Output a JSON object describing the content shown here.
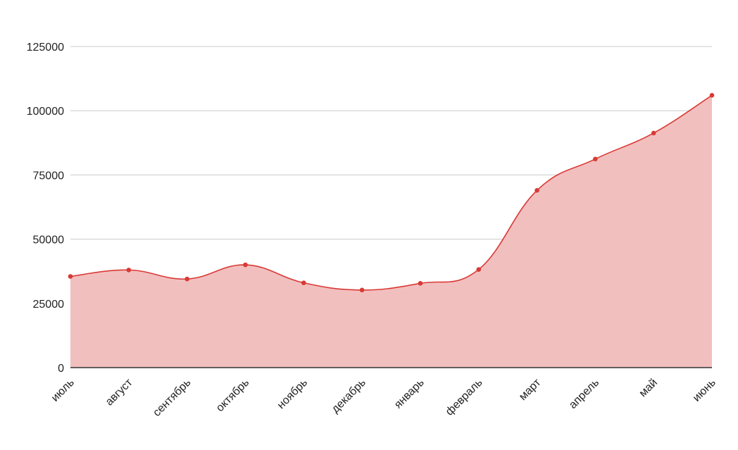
{
  "chart_data": {
    "type": "area",
    "categories": [
      "июль",
      "август",
      "сентябрь",
      "октябрь",
      "ноябрь",
      "декабрь",
      "январь",
      "февраль",
      "март",
      "апрель",
      "май",
      "июнь"
    ],
    "series": [
      {
        "values": [
          35500,
          38000,
          34500,
          40000,
          33000,
          30200,
          32800,
          38200,
          69000,
          81200,
          91300,
          106000
        ]
      }
    ],
    "y_ticks": [
      "0",
      "25000",
      "50000",
      "75000",
      "100000",
      "125000"
    ],
    "ylim": [
      0,
      125000
    ],
    "grid": true,
    "x_label_rotation": "-45deg",
    "colors": {
      "line": "#d93a35",
      "fill": "#f2bfbf",
      "grid": "#cccccc",
      "axis": "#333333"
    }
  }
}
